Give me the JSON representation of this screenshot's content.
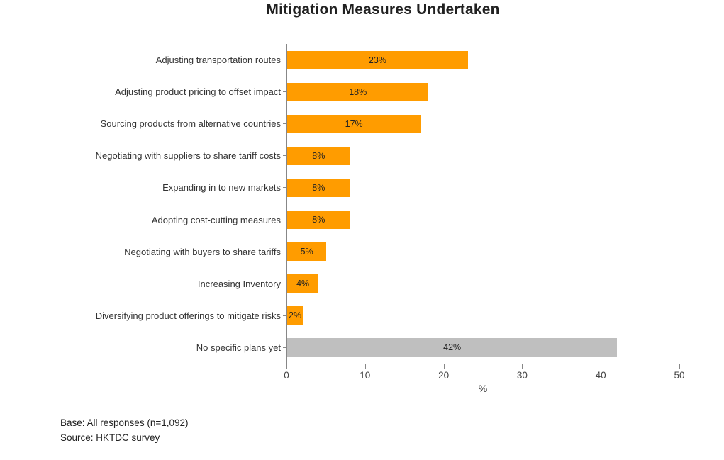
{
  "chart": {
    "title": "Mitigation Measures Undertaken"
  },
  "chart_data": {
    "type": "bar",
    "orientation": "horizontal",
    "title": "Mitigation Measures Undertaken",
    "categories": [
      "Adjusting transportation routes",
      "Adjusting product pricing to offset impact",
      "Sourcing products from alternative countries",
      "Negotiating with suppliers to share tariff costs",
      "Expanding in to new markets",
      "Adopting cost-cutting measures",
      "Negotiating with buyers to share tariffs",
      "Increasing Inventory",
      "Diversifying product offerings to mitigate risks",
      "No specific plans yet"
    ],
    "values": [
      23,
      18,
      17,
      8,
      8,
      8,
      5,
      4,
      2,
      42
    ],
    "value_labels": [
      "23%",
      "18%",
      "17%",
      "8%",
      "8%",
      "8%",
      "5%",
      "4%",
      "2%",
      "42%"
    ],
    "bar_colors": [
      "#FF9C00",
      "#FF9C00",
      "#FF9C00",
      "#FF9C00",
      "#FF9C00",
      "#FF9C00",
      "#FF9C00",
      "#FF9C00",
      "#FF9C00",
      "#BFBFBF"
    ],
    "xlabel": "%",
    "xlim": [
      0,
      50
    ],
    "xticks": [
      0,
      10,
      20,
      30,
      40,
      50
    ],
    "grid": false,
    "legend": "none",
    "colors": {
      "primary": "#FF9C00",
      "neutral": "#BFBFBF",
      "axis": "#878787",
      "text": "#333333"
    }
  },
  "footer": {
    "base_note": "Base: All responses (n=1,092)",
    "source_note": "Source: HKTDC survey"
  }
}
